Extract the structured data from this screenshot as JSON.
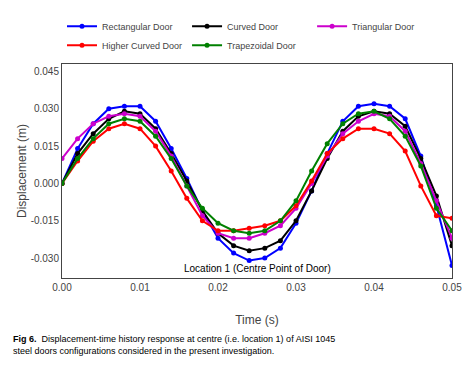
{
  "chart_data": {
    "type": "line",
    "xlabel": "Time (s)",
    "ylabel": "Displacement (m)",
    "annotation": "Location 1 (Centre Point of Door)",
    "caption_bold": "Fig 6.",
    "caption": "  Displacement-time history response at centre (i.e. location 1) of AISI 1045\nsteel doors configurations considered in the present investigation.",
    "xlim": [
      0.0,
      0.05
    ],
    "ylim": [
      -0.038,
      0.048
    ],
    "xticks": [
      {
        "value": 0.0,
        "label": "0.00"
      },
      0.01,
      0.02,
      0.03,
      0.04,
      0.05
    ],
    "yticks": [
      {
        "value": -0.03,
        "label": "-0.030"
      },
      -0.015,
      {
        "value": 0.0,
        "label": "0.000"
      },
      0.015,
      {
        "value": 0.03,
        "label": "0.030"
      },
      0.045
    ],
    "grid": false,
    "legend": "top",
    "x": [
      0.0,
      0.002,
      0.004,
      0.006,
      0.008,
      0.01,
      0.012,
      0.014,
      0.016,
      0.018,
      0.02,
      0.022,
      0.024,
      0.026,
      0.028,
      0.03,
      0.032,
      0.034,
      0.036,
      0.038,
      0.04,
      0.042,
      0.044,
      0.046,
      0.048,
      0.05
    ],
    "series": [
      {
        "name": "Rectangular Door",
        "color": "#0000FF",
        "marker": "circle",
        "values": [
          0.0,
          0.014,
          0.024,
          0.03,
          0.031,
          0.031,
          0.025,
          0.014,
          0.002,
          -0.011,
          -0.022,
          -0.028,
          -0.031,
          -0.03,
          -0.026,
          -0.016,
          -0.003,
          0.012,
          0.025,
          0.031,
          0.032,
          0.031,
          0.026,
          0.011,
          -0.009,
          -0.033
        ]
      },
      {
        "name": "Curved Door",
        "color": "#000000",
        "marker": "circle",
        "values": [
          0.0,
          0.012,
          0.02,
          0.026,
          0.029,
          0.028,
          0.022,
          0.012,
          0.001,
          -0.011,
          -0.02,
          -0.025,
          -0.027,
          -0.026,
          -0.023,
          -0.015,
          -0.003,
          0.01,
          0.021,
          0.027,
          0.029,
          0.028,
          0.023,
          0.01,
          -0.005,
          -0.025
        ]
      },
      {
        "name": "Triangular Door",
        "color": "#CC00CC",
        "marker": "circle",
        "values": [
          0.01,
          0.018,
          0.024,
          0.027,
          0.028,
          0.027,
          0.021,
          0.011,
          -0.001,
          -0.013,
          -0.02,
          -0.022,
          -0.022,
          -0.02,
          -0.017,
          -0.01,
          0.0,
          0.011,
          0.02,
          0.025,
          0.028,
          0.027,
          0.021,
          0.008,
          -0.007,
          -0.022
        ]
      },
      {
        "name": "Higher Curved Door",
        "color": "#FF0000",
        "marker": "circle",
        "values": [
          0.0,
          0.009,
          0.017,
          0.022,
          0.024,
          0.022,
          0.015,
          0.005,
          -0.006,
          -0.015,
          -0.019,
          -0.019,
          -0.018,
          -0.017,
          -0.015,
          -0.009,
          0.001,
          0.012,
          0.018,
          0.022,
          0.022,
          0.02,
          0.013,
          -0.001,
          -0.013,
          -0.014
        ]
      },
      {
        "name": "Trapezoidal Door",
        "color": "#008000",
        "marker": "circle",
        "values": [
          0.0,
          0.01,
          0.018,
          0.024,
          0.026,
          0.025,
          0.019,
          0.01,
          -0.001,
          -0.01,
          -0.016,
          -0.019,
          -0.02,
          -0.019,
          -0.015,
          -0.007,
          0.005,
          0.016,
          0.024,
          0.028,
          0.029,
          0.026,
          0.019,
          0.007,
          -0.01,
          -0.019
        ]
      }
    ]
  }
}
